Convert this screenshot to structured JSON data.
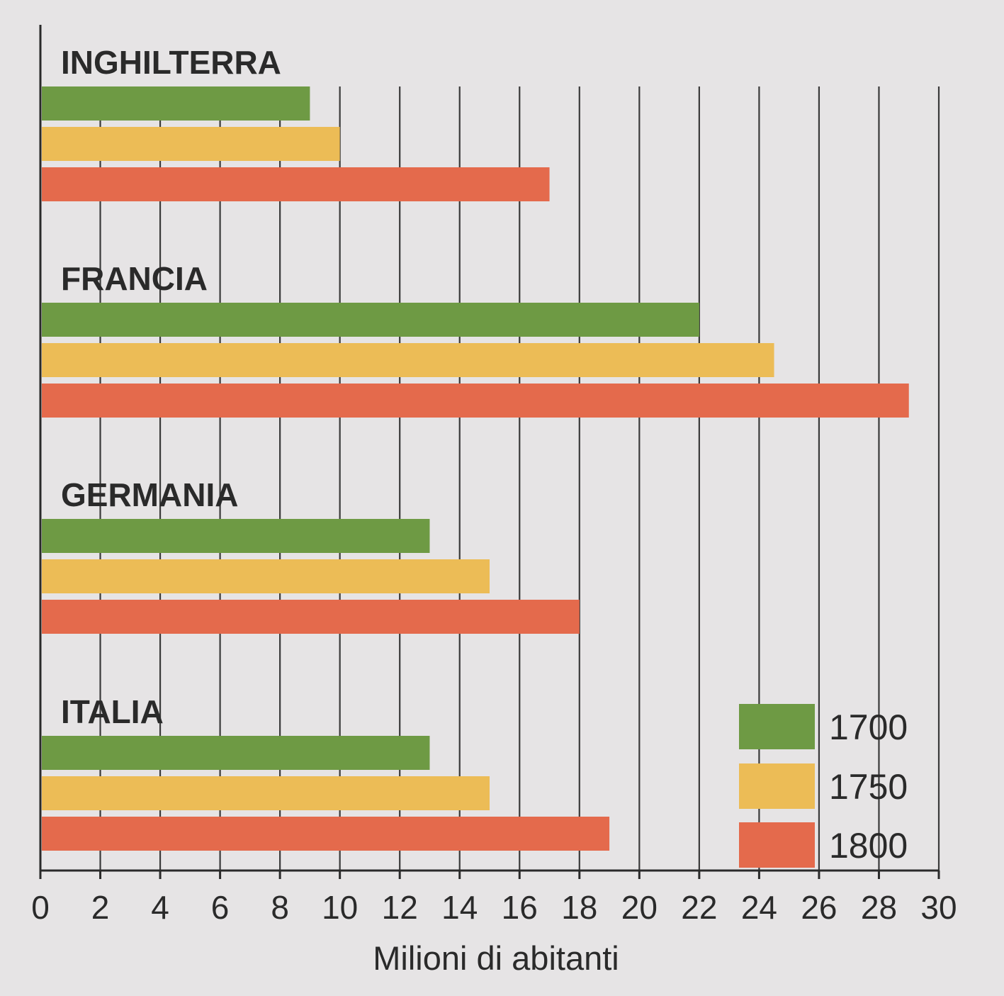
{
  "chart_data": {
    "type": "bar",
    "orientation": "horizontal",
    "categories": [
      "INGHILTERRA",
      "FRANCIA",
      "GERMANIA",
      "ITALIA"
    ],
    "series": [
      {
        "name": "1700",
        "color": "#6e9a44",
        "values": [
          9,
          22,
          13,
          13
        ]
      },
      {
        "name": "1750",
        "color": "#ecbc56",
        "values": [
          10,
          24.5,
          15,
          15
        ]
      },
      {
        "name": "1800",
        "color": "#e46a4c",
        "values": [
          17,
          29,
          18,
          19
        ]
      }
    ],
    "x_ticks": [
      "0",
      "2",
      "4",
      "6",
      "8",
      "10",
      "12",
      "14",
      "16",
      "18",
      "20",
      "22",
      "24",
      "26",
      "28",
      "30"
    ],
    "xlim": [
      0,
      30
    ],
    "xlabel": "Milioni di abitanti",
    "ylabel": "",
    "title": "",
    "grid": true,
    "legend_position": "bottom-right"
  }
}
